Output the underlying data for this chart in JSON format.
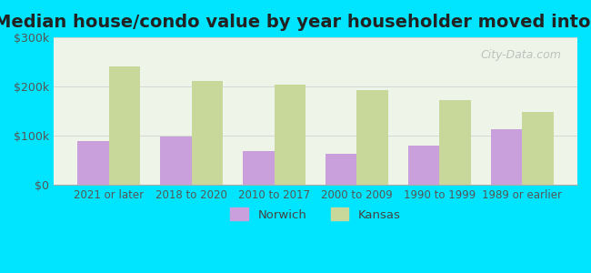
{
  "title": "Median house/condo value by year householder moved into unit",
  "categories": [
    "2021 or later",
    "2018 to 2020",
    "2010 to 2017",
    "2000 to 2009",
    "1990 to 1999",
    "1989 or earlier"
  ],
  "norwich_values": [
    88000,
    97000,
    68000,
    63000,
    80000,
    113000
  ],
  "kansas_values": [
    240000,
    212000,
    203000,
    193000,
    173000,
    148000
  ],
  "norwich_color": "#c9a0dc",
  "kansas_color": "#c8d89a",
  "background_outer": "#00e5ff",
  "background_inner_top": "#e8f5e9",
  "background_inner_bottom": "#f0f8f0",
  "ylim": [
    0,
    300000
  ],
  "yticks": [
    0,
    100000,
    200000,
    300000
  ],
  "ytick_labels": [
    "$0",
    "$100k",
    "$200k",
    "$300k"
  ],
  "legend_norwich": "Norwich",
  "legend_kansas": "Kansas",
  "watermark": "City-Data.com",
  "title_fontsize": 14,
  "bar_width": 0.38
}
